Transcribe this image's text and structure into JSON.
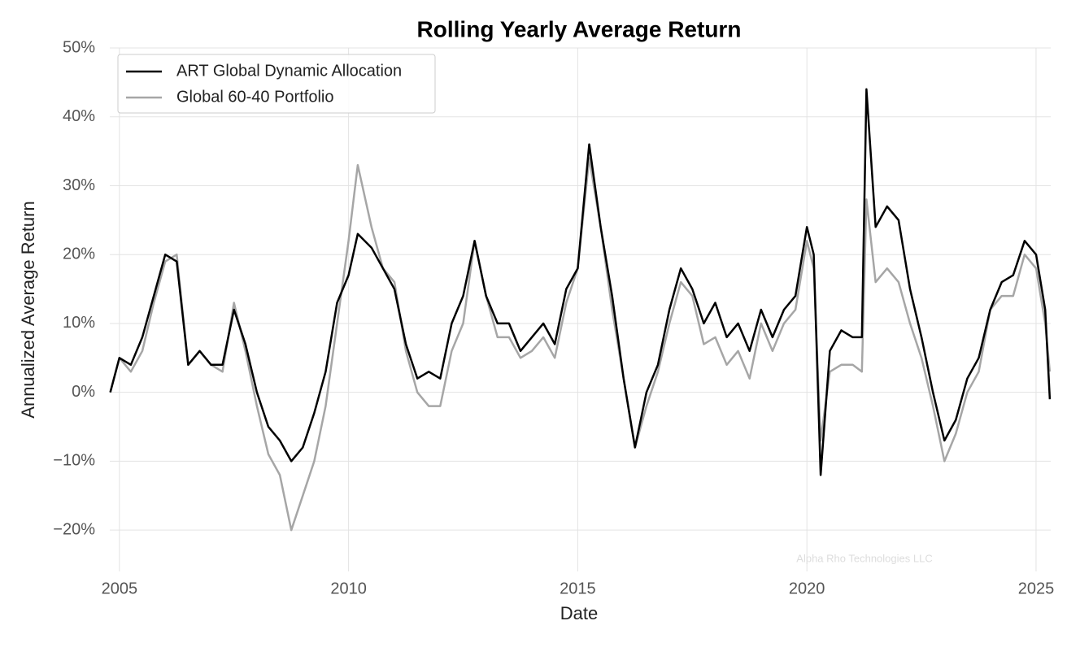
{
  "chart_data": {
    "type": "line",
    "title": "Rolling Yearly Average Return",
    "xlabel": "Date",
    "ylabel": "Annualized Average Return",
    "watermark": "Alpha Rho Technologies LLC",
    "x": [
      2004.8,
      2005.0,
      2005.25,
      2005.5,
      2005.75,
      2006.0,
      2006.25,
      2006.5,
      2006.75,
      2007.0,
      2007.25,
      2007.5,
      2007.75,
      2008.0,
      2008.25,
      2008.5,
      2008.75,
      2009.0,
      2009.25,
      2009.5,
      2009.75,
      2010.0,
      2010.2,
      2010.5,
      2010.75,
      2011.0,
      2011.25,
      2011.5,
      2011.75,
      2012.0,
      2012.25,
      2012.5,
      2012.75,
      2013.0,
      2013.25,
      2013.5,
      2013.75,
      2014.0,
      2014.25,
      2014.5,
      2014.75,
      2015.0,
      2015.25,
      2015.5,
      2015.75,
      2016.0,
      2016.25,
      2016.5,
      2016.75,
      2017.0,
      2017.25,
      2017.5,
      2017.75,
      2018.0,
      2018.25,
      2018.5,
      2018.75,
      2019.0,
      2019.25,
      2019.5,
      2019.75,
      2020.0,
      2020.15,
      2020.3,
      2020.5,
      2020.75,
      2021.0,
      2021.2,
      2021.3,
      2021.5,
      2021.75,
      2022.0,
      2022.25,
      2022.5,
      2022.75,
      2023.0,
      2023.25,
      2023.5,
      2023.75,
      2024.0,
      2024.25,
      2024.5,
      2024.75,
      2025.0,
      2025.2,
      2025.3
    ],
    "series": [
      {
        "name": "ART Global Dynamic Allocation",
        "color": "#000000",
        "values": [
          0,
          5,
          4,
          8,
          14,
          20,
          19,
          4,
          6,
          4,
          4,
          12,
          7,
          0,
          -5,
          -7,
          -10,
          -8,
          -3,
          3,
          13,
          17,
          23,
          21,
          18,
          15,
          7,
          2,
          3,
          2,
          10,
          14,
          22,
          14,
          10,
          10,
          6,
          8,
          10,
          7,
          15,
          18,
          36,
          24,
          14,
          2,
          -8,
          0,
          4,
          12,
          18,
          15,
          10,
          13,
          8,
          10,
          6,
          12,
          8,
          12,
          14,
          24,
          20,
          -12,
          6,
          9,
          8,
          8,
          44,
          24,
          27,
          25,
          15,
          8,
          0,
          -7,
          -4,
          2,
          5,
          12,
          16,
          17,
          22,
          20,
          12,
          -1
        ]
      },
      {
        "name": "Global 60-40 Portfolio",
        "color": "#a6a6a6",
        "values": [
          0,
          5,
          3,
          6,
          13,
          19,
          20,
          4,
          6,
          4,
          3,
          13,
          6,
          -2,
          -9,
          -12,
          -20,
          -15,
          -10,
          -2,
          10,
          22,
          33,
          24,
          18,
          16,
          6,
          0,
          -2,
          -2,
          6,
          10,
          22,
          14,
          8,
          8,
          5,
          6,
          8,
          5,
          13,
          18,
          34,
          24,
          12,
          2,
          -8,
          -2,
          3,
          10,
          16,
          14,
          7,
          8,
          4,
          6,
          2,
          10,
          6,
          10,
          12,
          22,
          18,
          -7,
          3,
          4,
          4,
          3,
          28,
          16,
          18,
          16,
          10,
          5,
          -2,
          -10,
          -6,
          0,
          3,
          12,
          14,
          14,
          20,
          18,
          10,
          3
        ]
      }
    ],
    "xlim": [
      2004.79,
      2025.32
    ],
    "xticks": [
      2005,
      2010,
      2015,
      2020,
      2025
    ],
    "ylim": [
      -26,
      50
    ],
    "yticks": [
      {
        "value": -20,
        "label": "−20%"
      },
      {
        "value": -10,
        "label": "−10%"
      },
      {
        "value": 0,
        "label": "0%"
      },
      {
        "value": 10,
        "label": "10%"
      },
      {
        "value": 20,
        "label": "20%"
      },
      {
        "value": 30,
        "label": "30%"
      },
      {
        "value": 40,
        "label": "40%"
      },
      {
        "value": 50,
        "label": "50%"
      }
    ],
    "grid": true,
    "legend": "upper left"
  }
}
